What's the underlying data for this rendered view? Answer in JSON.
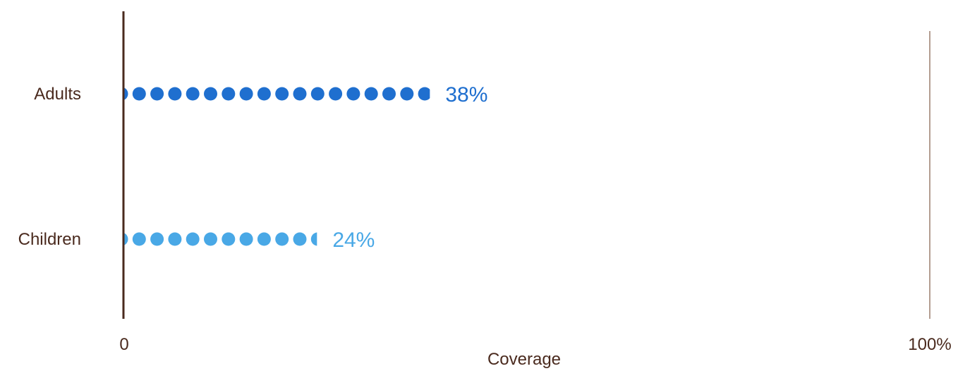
{
  "chart_data": {
    "type": "bar",
    "categories": [
      "Adults",
      "Children"
    ],
    "values": [
      38,
      24
    ],
    "value_labels": [
      "38%",
      "24%"
    ],
    "series_colors": [
      "#1f6fcf",
      "#49a8e6"
    ],
    "xlabel": "Coverage",
    "ylabel": "",
    "xlim": [
      0,
      100
    ],
    "x_tick_labels": [
      "0",
      "100%"
    ],
    "orientation": "horizontal",
    "mark_style": "dotted",
    "grid": false,
    "legend": "none"
  },
  "colors": {
    "axis_zero": "#4a2a1e",
    "axis_end": "#9b7e6e",
    "text": "#4a2a1e"
  }
}
